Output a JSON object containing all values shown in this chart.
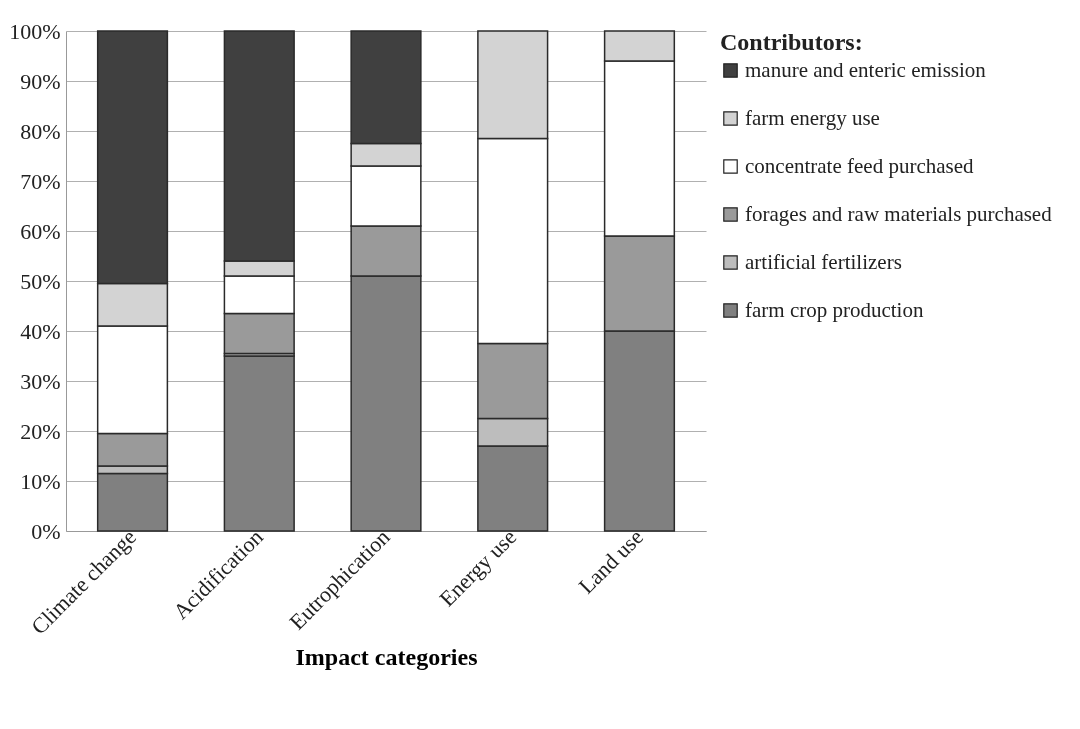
{
  "chart_data": {
    "type": "bar",
    "stacked": true,
    "xlabel": "Impact categories",
    "legend_title": "Contributors:",
    "legend": "right",
    "grid": "y",
    "categories": [
      "Climate change",
      "Acidification",
      "Eutrophication",
      "Energy use",
      "Land use"
    ],
    "ylim": [
      0,
      100
    ],
    "yticks": [
      {
        "value": 0,
        "label": "0%"
      },
      {
        "value": 10,
        "label": "10%"
      },
      {
        "value": 20,
        "label": "20%"
      },
      {
        "value": 30,
        "label": "30%"
      },
      {
        "value": 40,
        "label": "40%"
      },
      {
        "value": 50,
        "label": "50%"
      },
      {
        "value": 60,
        "label": "60%"
      },
      {
        "value": 70,
        "label": "70%"
      },
      {
        "value": 80,
        "label": "80%"
      },
      {
        "value": 90,
        "label": "90%"
      },
      {
        "value": 100,
        "label": "100%"
      }
    ],
    "series": [
      {
        "name": "farm crop production",
        "color": "#808080",
        "values": [
          11.5,
          35,
          51,
          17,
          40
        ]
      },
      {
        "name": "artificial fertilizers",
        "color": "#bdbdbd",
        "values": [
          1.5,
          0.5,
          0,
          5.5,
          0
        ]
      },
      {
        "name": "forages and raw materials purchased",
        "color": "#9a9a9a",
        "values": [
          6.5,
          8,
          10,
          15,
          19
        ]
      },
      {
        "name": "concentrate feed purchased",
        "color": "#ffffff",
        "values": [
          21.5,
          7.5,
          12,
          41,
          35
        ]
      },
      {
        "name": "farm energy use",
        "color": "#d3d3d3",
        "values": [
          8.5,
          3,
          4.5,
          21.5,
          6
        ]
      },
      {
        "name": "manure and enteric emission",
        "color": "#404040",
        "values": [
          50.5,
          46,
          22.5,
          0,
          0
        ]
      }
    ]
  }
}
